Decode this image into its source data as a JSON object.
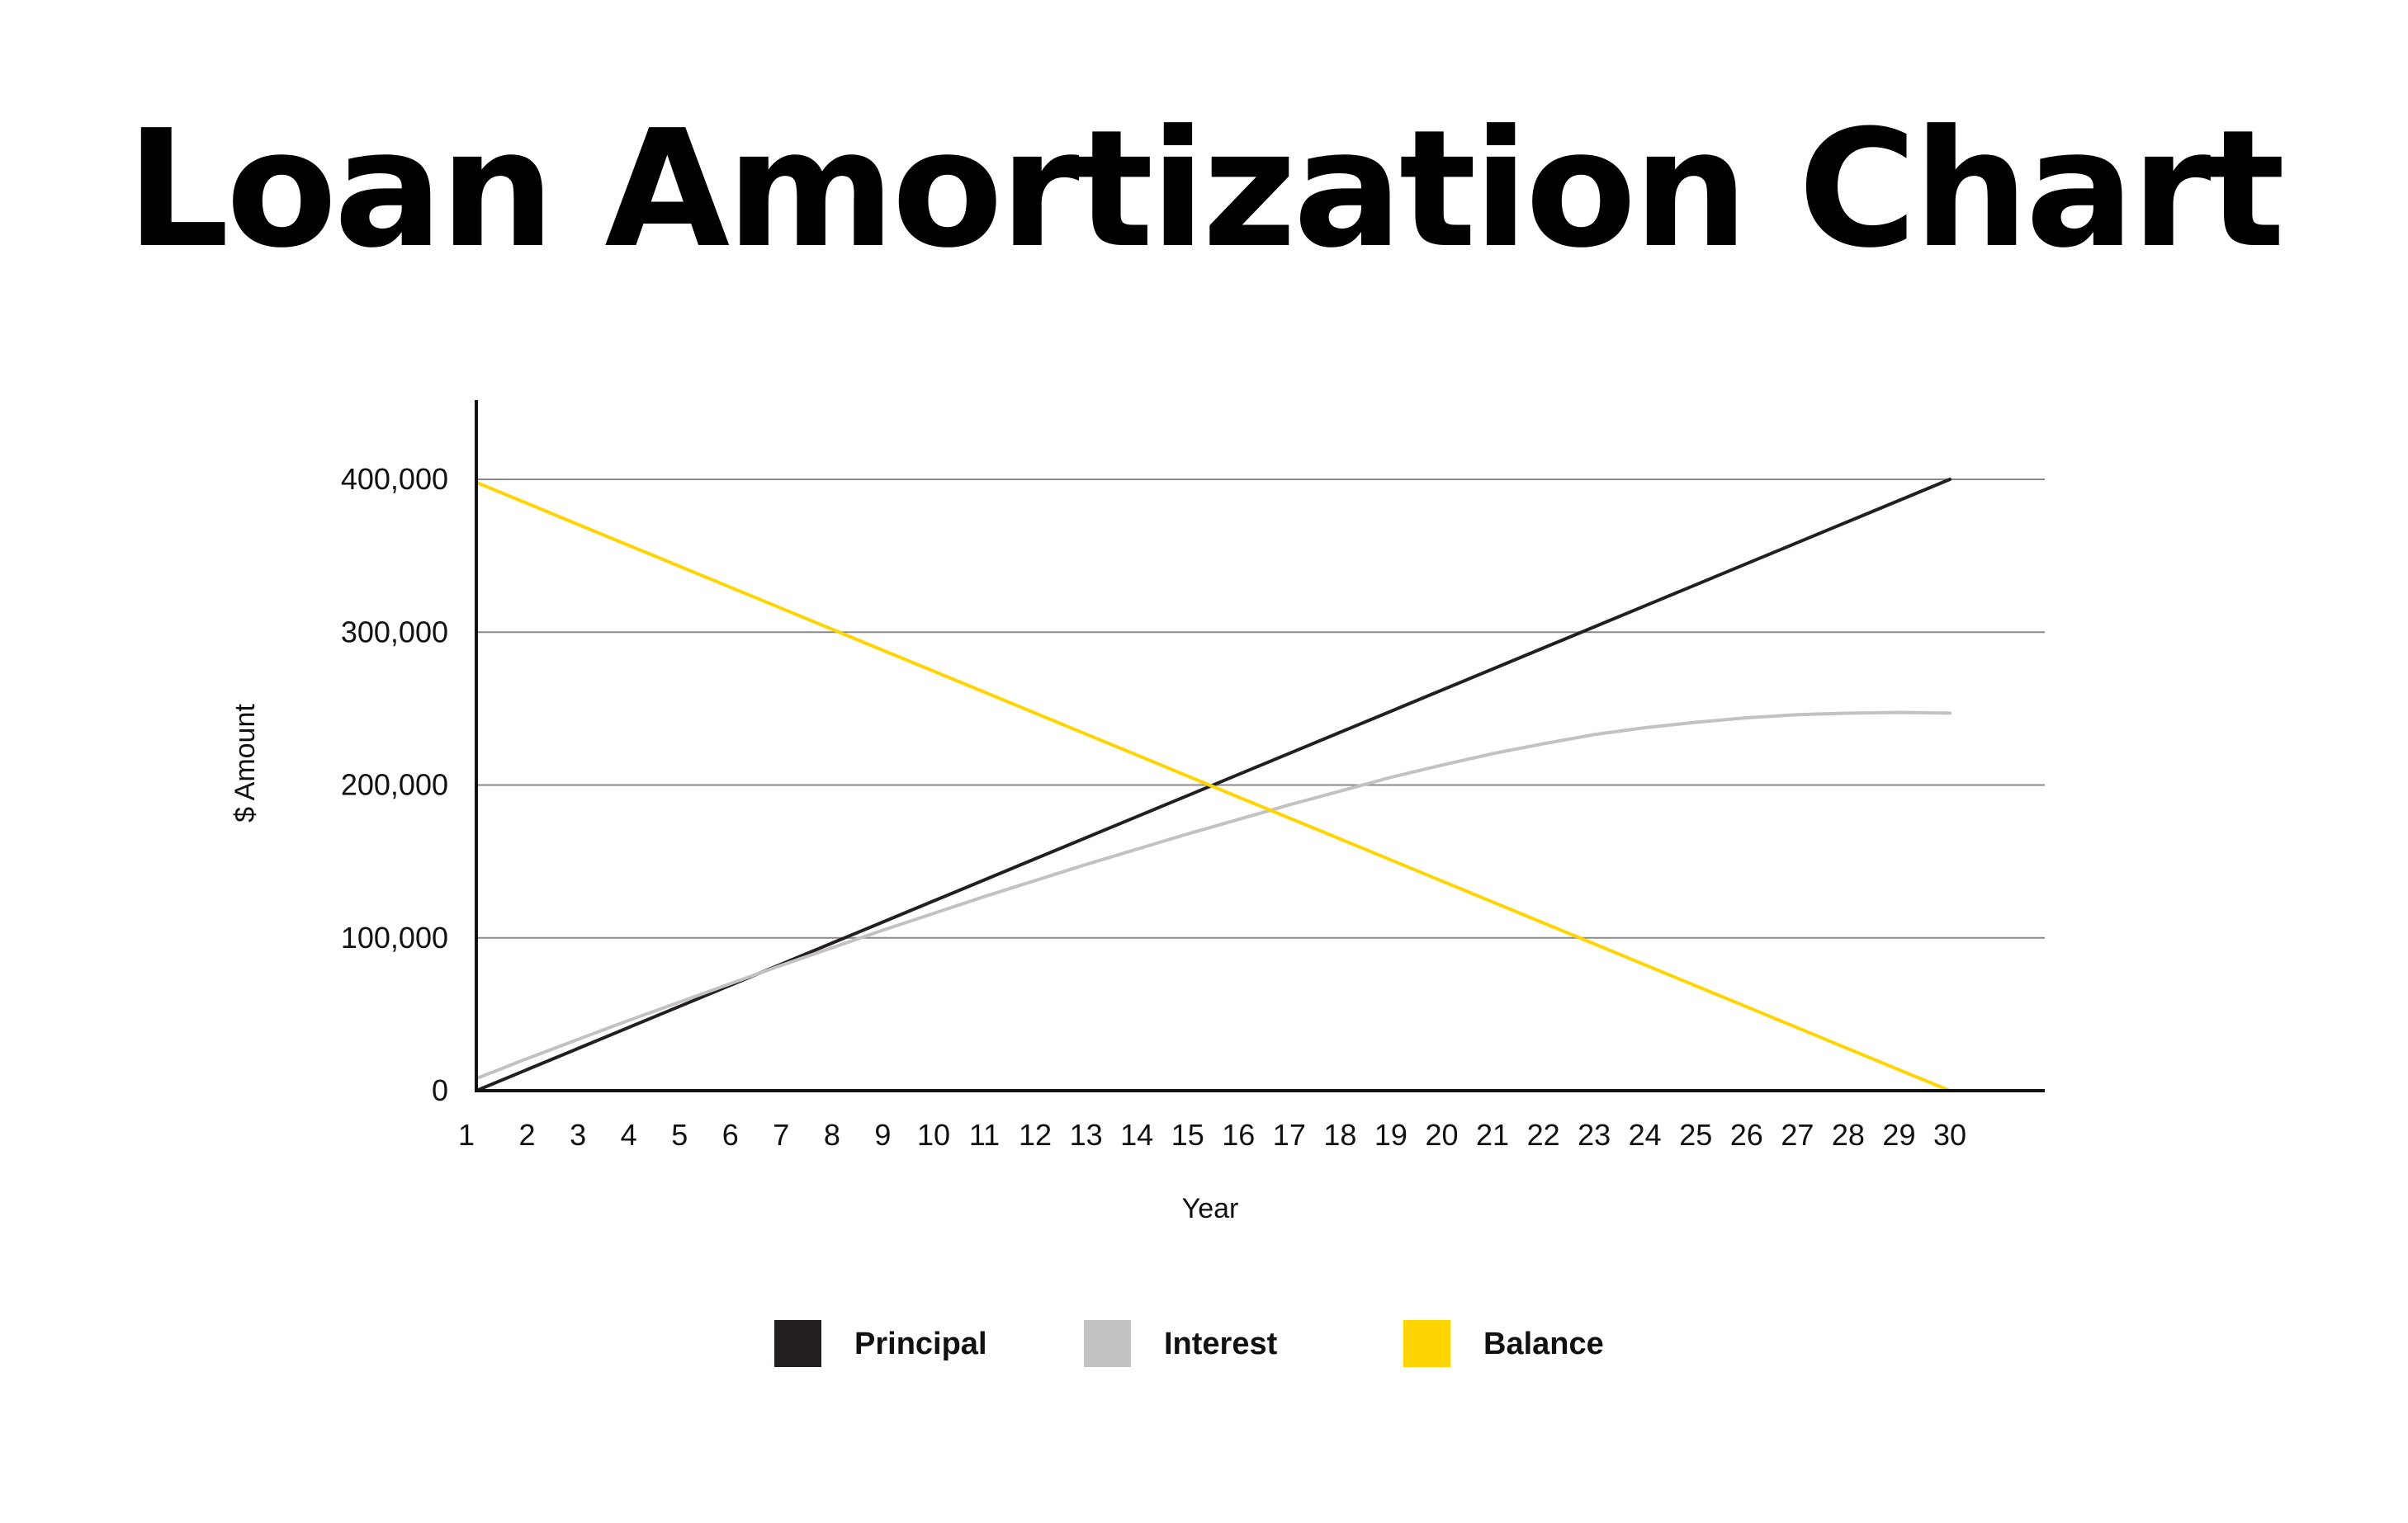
{
  "chart_data": {
    "type": "line",
    "title": "Loan Amortization Chart",
    "xlabel": "Year",
    "ylabel": "$ Amount",
    "x": [
      1,
      2,
      3,
      4,
      5,
      6,
      7,
      8,
      9,
      10,
      11,
      12,
      13,
      14,
      15,
      16,
      17,
      18,
      19,
      20,
      21,
      22,
      23,
      24,
      25,
      26,
      27,
      28,
      29,
      30
    ],
    "xlim": [
      1,
      30
    ],
    "ylim": [
      0,
      400000
    ],
    "yticks": [
      0,
      100000,
      200000,
      300000,
      400000
    ],
    "ytick_labels": [
      "0",
      "100,000",
      "200,000",
      "300,000",
      "400,000"
    ],
    "grid": true,
    "legend_position": "bottom",
    "series": [
      {
        "name": "Principal",
        "color": "#231f20",
        "values": [
          0,
          13793,
          27586,
          41379,
          55172,
          68966,
          82759,
          96552,
          110345,
          124138,
          137931,
          151724,
          165517,
          179310,
          193103,
          206897,
          220690,
          234483,
          248276,
          262069,
          275862,
          289655,
          303448,
          317241,
          331034,
          344828,
          358621,
          372414,
          386207,
          400000
        ]
      },
      {
        "name": "Interest",
        "color": "#c2c2c2",
        "values": [
          8000,
          21000,
          33500,
          46000,
          58000,
          70000,
          82000,
          93500,
          105000,
          116000,
          127000,
          137500,
          148000,
          158000,
          168000,
          177500,
          187000,
          196000,
          205000,
          213000,
          220500,
          227000,
          233000,
          237500,
          241000,
          244000,
          246000,
          247000,
          247500,
          247000
        ]
      },
      {
        "name": "Balance",
        "color": "#ffd500",
        "values": [
          398000,
          384276,
          370552,
          356828,
          343103,
          329379,
          315655,
          301931,
          288207,
          274483,
          260759,
          247034,
          233310,
          219586,
          205862,
          192138,
          178414,
          164690,
          150966,
          137241,
          123517,
          109793,
          96069,
          82345,
          68621,
          54897,
          41172,
          27448,
          13724,
          0
        ]
      }
    ]
  }
}
